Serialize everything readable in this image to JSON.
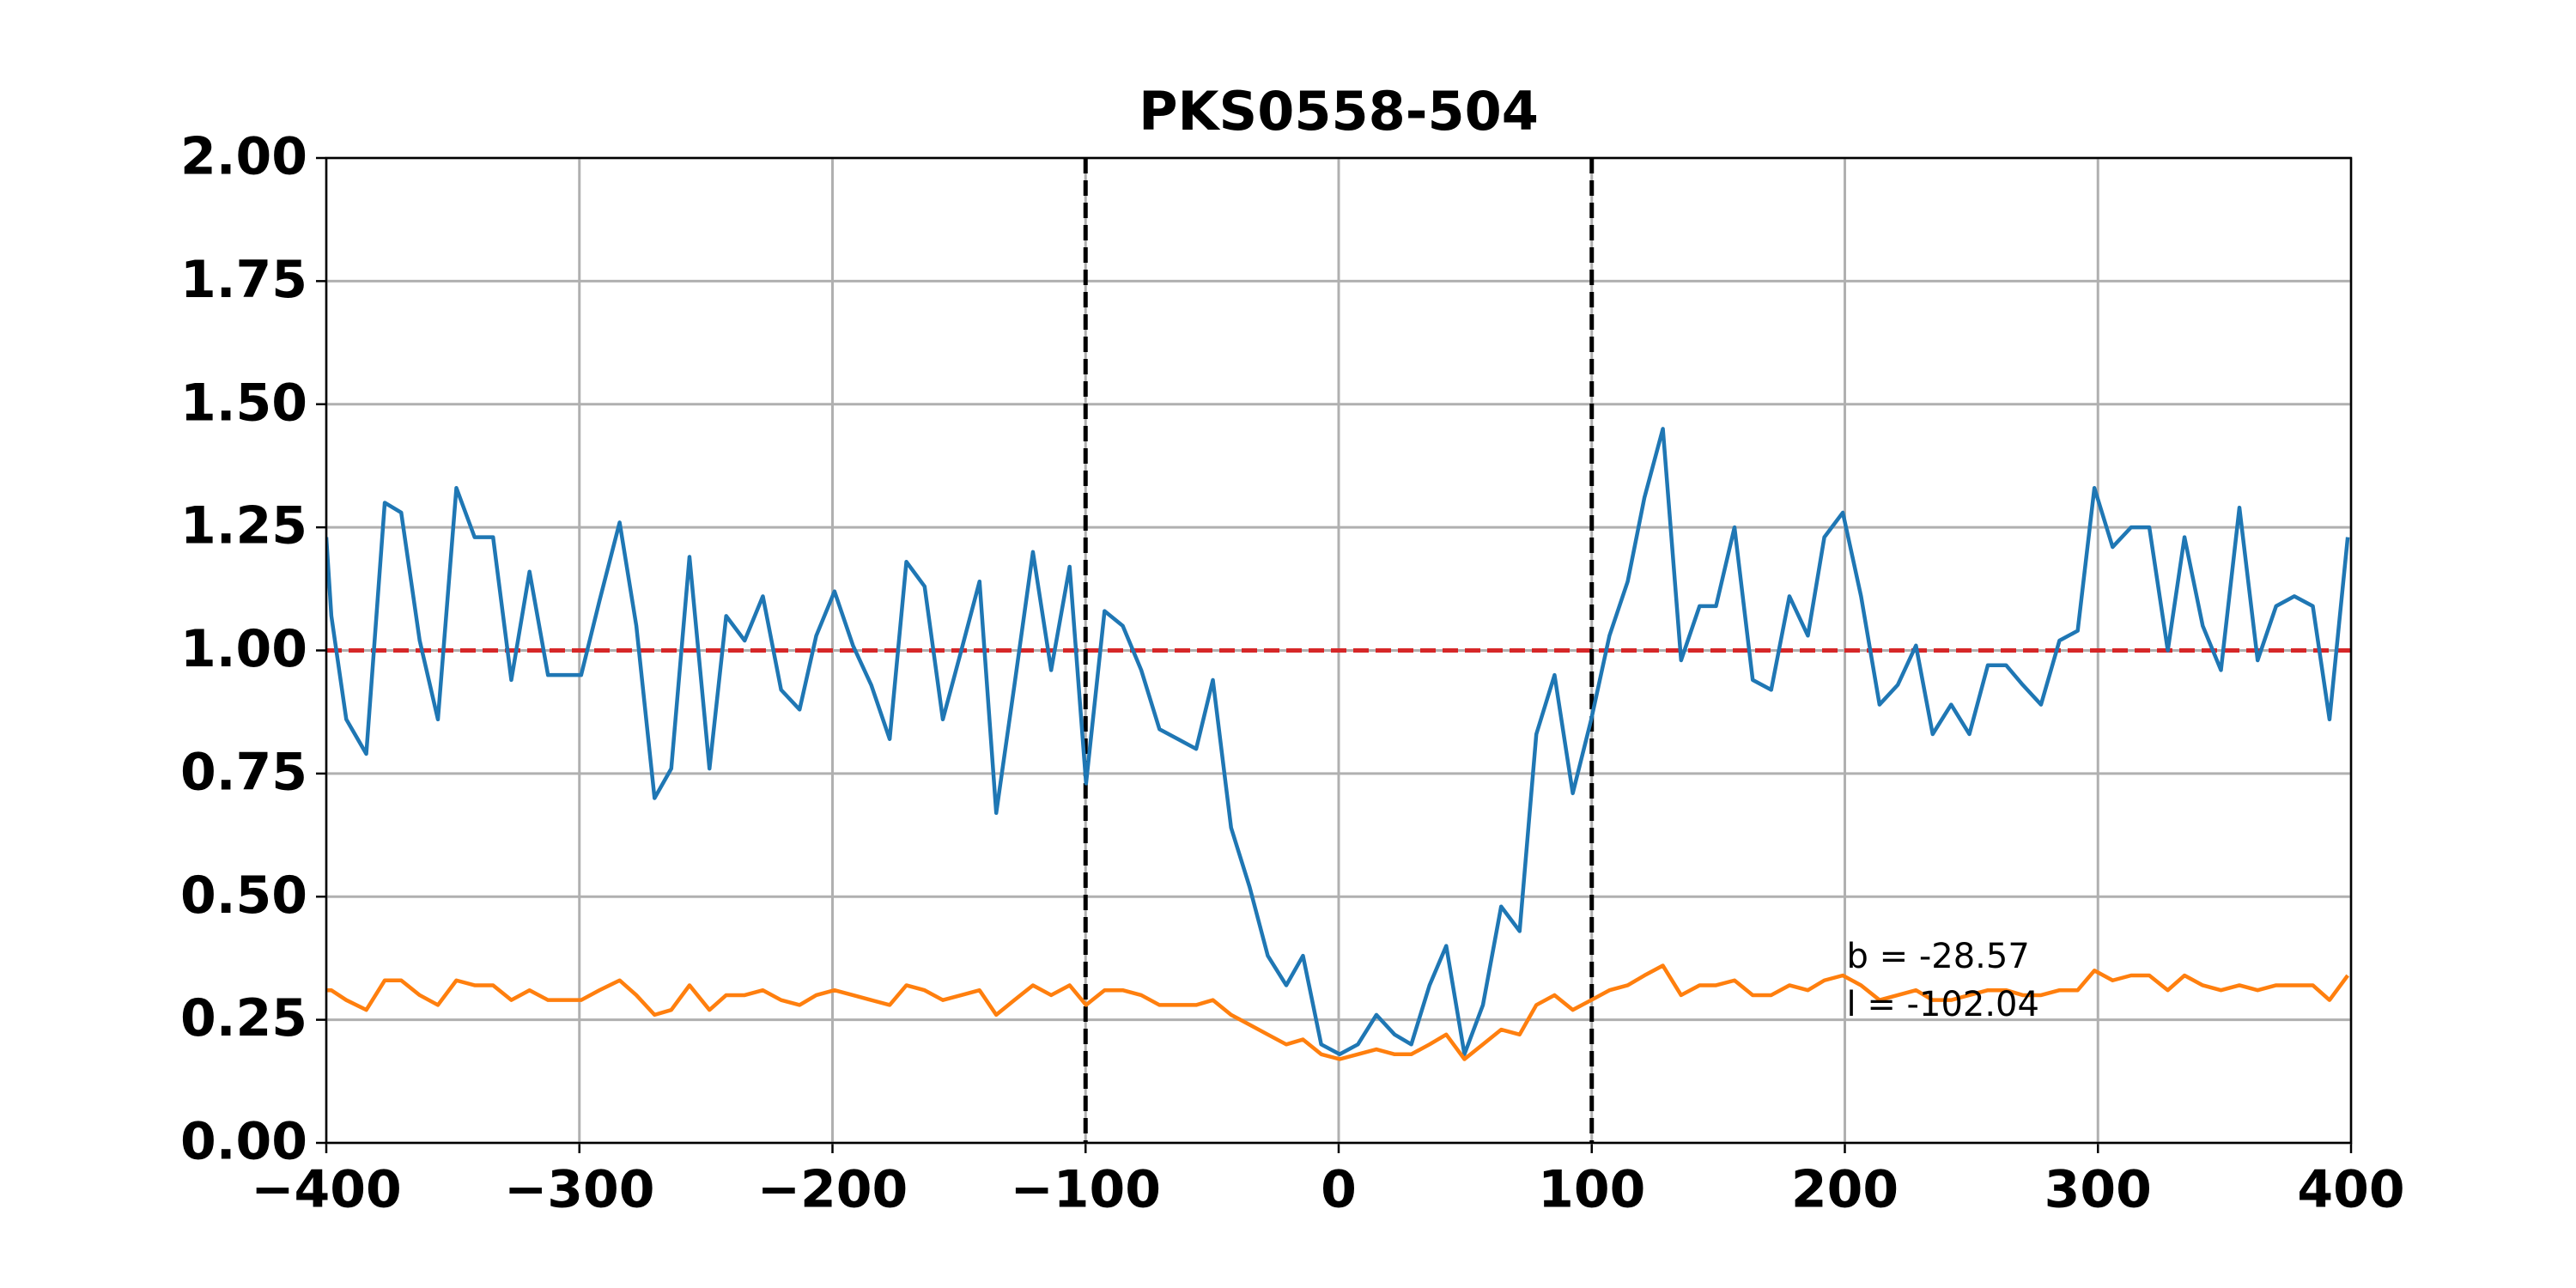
{
  "chart_data": {
    "type": "line",
    "title": "PKS0558-504",
    "x": [
      -400,
      -398.0,
      -392.1,
      -384.2,
      -376.9,
      -370.4,
      -363.1,
      -355.9,
      -348.6,
      -341.4,
      -334.1,
      -326.9,
      -319.7,
      -312.4,
      -305.8,
      -299.3,
      -292.1,
      -284.1,
      -277.5,
      -270.3,
      -263.7,
      -256.5,
      -248.6,
      -242.0,
      -234.7,
      -227.5,
      -220.3,
      -213.0,
      -206.4,
      -199.2,
      -191.9,
      -184.7,
      -177.4,
      -170.8,
      -163.6,
      -156.4,
      -149.1,
      -141.9,
      -135.3,
      -128.1,
      -120.8,
      -113.6,
      -106.3,
      -99.8,
      -92.5,
      -85.3,
      -78.0,
      -70.8,
      -63.5,
      -56.3,
      -49.7,
      -42.5,
      -35.2,
      -28.0,
      -20.7,
      -14.1,
      -6.9,
      0.4,
      7.6,
      14.9,
      22.1,
      28.7,
      35.9,
      42.5,
      49.7,
      57.0,
      64.2,
      71.5,
      78.1,
      85.3,
      92.5,
      99.8,
      107.0,
      114.2,
      120.8,
      128.1,
      135.3,
      142.6,
      149.1,
      156.4,
      163.6,
      170.9,
      178.1,
      185.4,
      191.9,
      199.2,
      206.4,
      213.7,
      220.9,
      228.1,
      234.7,
      242.0,
      249.2,
      256.5,
      263.7,
      270.3,
      277.5,
      284.8,
      292.0,
      298.6,
      305.8,
      313.1,
      320.3,
      327.6,
      334.2,
      341.4,
      348.6,
      355.9,
      363.1,
      370.4,
      377.6,
      384.9,
      391.5,
      398.7
    ],
    "series": [
      {
        "color": "#1f77b4",
        "values": [
          1.23,
          1.07,
          0.86,
          0.79,
          1.3,
          1.28,
          1.02,
          0.86,
          1.33,
          1.23,
          1.23,
          0.94,
          1.16,
          0.95,
          0.95,
          0.95,
          1.1,
          1.26,
          1.05,
          0.7,
          0.76,
          1.19,
          0.76,
          1.07,
          1.02,
          1.11,
          0.92,
          0.88,
          1.03,
          1.12,
          1.01,
          0.93,
          0.82,
          1.18,
          1.13,
          0.86,
          1.0,
          1.14,
          0.67,
          0.93,
          1.2,
          0.96,
          1.17,
          0.73,
          1.08,
          1.05,
          0.96,
          0.84,
          0.82,
          0.8,
          0.94,
          0.64,
          0.52,
          0.38,
          0.32,
          0.38,
          0.2,
          0.18,
          0.2,
          0.26,
          0.22,
          0.2,
          0.32,
          0.4,
          0.18,
          0.28,
          0.48,
          0.43,
          0.83,
          0.95,
          0.71,
          0.86,
          1.03,
          1.14,
          1.31,
          1.45,
          0.98,
          1.09,
          1.09,
          1.25,
          0.94,
          0.92,
          1.11,
          1.03,
          1.23,
          1.28,
          1.11,
          0.89,
          0.93,
          1.01,
          0.83,
          0.89,
          0.83,
          0.97,
          0.97,
          0.93,
          0.89,
          1.02,
          1.04,
          1.33,
          1.21,
          1.25,
          1.25,
          1.0,
          1.23,
          1.05,
          0.96,
          1.29,
          0.98,
          1.09,
          1.11,
          1.09,
          0.86,
          1.23
        ]
      },
      {
        "color": "#ff7f0e",
        "values": [
          0.31,
          0.31,
          0.29,
          0.27,
          0.33,
          0.33,
          0.3,
          0.28,
          0.33,
          0.32,
          0.32,
          0.29,
          0.31,
          0.29,
          0.29,
          0.29,
          0.31,
          0.33,
          0.3,
          0.26,
          0.27,
          0.32,
          0.27,
          0.3,
          0.3,
          0.31,
          0.29,
          0.28,
          0.3,
          0.31,
          0.3,
          0.29,
          0.28,
          0.32,
          0.31,
          0.29,
          0.3,
          0.31,
          0.26,
          0.29,
          0.32,
          0.3,
          0.32,
          0.28,
          0.31,
          0.31,
          0.3,
          0.28,
          0.28,
          0.28,
          0.29,
          0.26,
          0.24,
          0.22,
          0.2,
          0.21,
          0.18,
          0.17,
          0.18,
          0.19,
          0.18,
          0.18,
          0.2,
          0.22,
          0.17,
          0.2,
          0.23,
          0.22,
          0.28,
          0.3,
          0.27,
          0.29,
          0.31,
          0.32,
          0.34,
          0.36,
          0.3,
          0.32,
          0.32,
          0.33,
          0.3,
          0.3,
          0.32,
          0.31,
          0.33,
          0.34,
          0.32,
          0.29,
          0.3,
          0.31,
          0.29,
          0.29,
          0.3,
          0.31,
          0.31,
          0.3,
          0.3,
          0.31,
          0.31,
          0.35,
          0.33,
          0.34,
          0.34,
          0.31,
          0.34,
          0.32,
          0.31,
          0.32,
          0.31,
          0.32,
          0.32,
          0.32,
          0.29,
          0.34
        ]
      }
    ],
    "hlines": [
      {
        "value": 1,
        "color": "#d62728"
      }
    ],
    "vlines": [
      {
        "value": -100,
        "color": "#000000"
      },
      {
        "value": 100,
        "color": "#000000"
      }
    ],
    "annotations": [
      "b = -28.57",
      "l = -102.04"
    ],
    "xlim": [
      -400,
      400
    ],
    "xticks": [
      {
        "value": -400,
        "label": "−400"
      },
      {
        "value": -300,
        "label": "−300"
      },
      {
        "value": -200,
        "label": "−200"
      },
      {
        "value": -100,
        "label": "−100"
      },
      0,
      100,
      200,
      300,
      400
    ],
    "ylim": [
      0,
      2
    ],
    "yticks": [
      {
        "value": 0,
        "label": "0.00"
      },
      {
        "value": 0.25,
        "label": "0.25"
      },
      {
        "value": 0.5,
        "label": "0.50"
      },
      {
        "value": 0.75,
        "label": "0.75"
      },
      {
        "value": 1,
        "label": "1.00"
      },
      {
        "value": 1.25,
        "label": "1.25"
      },
      {
        "value": 1.5,
        "label": "1.50"
      },
      {
        "value": 1.75,
        "label": "1.75"
      },
      {
        "value": 2,
        "label": "2.00"
      }
    ],
    "grid": true
  }
}
